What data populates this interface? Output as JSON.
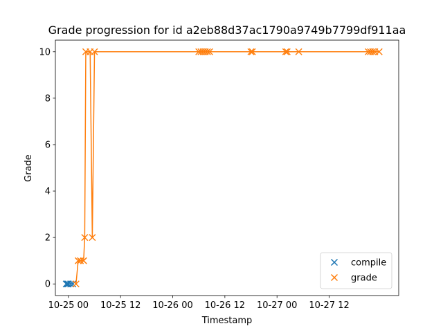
{
  "chart_data": {
    "type": "scatter",
    "title": "Grade progression for id a2eb88d37ac1790a9749b7799df911aa",
    "xlabel": "Timestamp",
    "ylabel": "Grade",
    "x_ticks": [
      "10-25 00",
      "10-25 12",
      "10-26 00",
      "10-26 12",
      "10-27 00",
      "10-27 12"
    ],
    "y_ticks": [
      "0",
      "2",
      "4",
      "6",
      "8",
      "10"
    ],
    "xlim": [
      "2023-10-24T21:00",
      "2023-10-28T04:00"
    ],
    "ylim": [
      -0.5,
      10.5
    ],
    "legend_position": "lower-right",
    "grid": false,
    "series": [
      {
        "name": "compile",
        "color": "#1f77b4",
        "marker": "x",
        "line": false,
        "points": [
          {
            "x": "2023-10-24T23:30",
            "y": 0
          },
          {
            "x": "2023-10-24T23:45",
            "y": 0
          },
          {
            "x": "2023-10-25T00:00",
            "y": 0
          },
          {
            "x": "2023-10-25T00:30",
            "y": 0
          },
          {
            "x": "2023-10-25T01:00",
            "y": 0
          }
        ]
      },
      {
        "name": "grade",
        "color": "#ff7f0e",
        "marker": "x",
        "line": true,
        "points": [
          {
            "x": "2023-10-25T01:45",
            "y": 0
          },
          {
            "x": "2023-10-25T02:15",
            "y": 1
          },
          {
            "x": "2023-10-25T02:45",
            "y": 1
          },
          {
            "x": "2023-10-25T03:30",
            "y": 1
          },
          {
            "x": "2023-10-25T03:45",
            "y": 2
          },
          {
            "x": "2023-10-25T04:00",
            "y": 10
          },
          {
            "x": "2023-10-25T05:00",
            "y": 10
          },
          {
            "x": "2023-10-25T05:30",
            "y": 2
          },
          {
            "x": "2023-10-25T06:00",
            "y": 10
          },
          {
            "x": "2023-10-26T06:00",
            "y": 10
          },
          {
            "x": "2023-10-26T06:30",
            "y": 10
          },
          {
            "x": "2023-10-26T07:00",
            "y": 10
          },
          {
            "x": "2023-10-26T07:30",
            "y": 10
          },
          {
            "x": "2023-10-26T08:00",
            "y": 10
          },
          {
            "x": "2023-10-26T08:30",
            "y": 10
          },
          {
            "x": "2023-10-26T18:00",
            "y": 10
          },
          {
            "x": "2023-10-26T18:20",
            "y": 10
          },
          {
            "x": "2023-10-27T02:00",
            "y": 10
          },
          {
            "x": "2023-10-27T02:20",
            "y": 10
          },
          {
            "x": "2023-10-27T05:00",
            "y": 10
          },
          {
            "x": "2023-10-27T21:00",
            "y": 10
          },
          {
            "x": "2023-10-27T21:30",
            "y": 10
          },
          {
            "x": "2023-10-27T22:00",
            "y": 10
          },
          {
            "x": "2023-10-27T22:30",
            "y": 10
          },
          {
            "x": "2023-10-27T23:30",
            "y": 10
          }
        ]
      }
    ]
  }
}
